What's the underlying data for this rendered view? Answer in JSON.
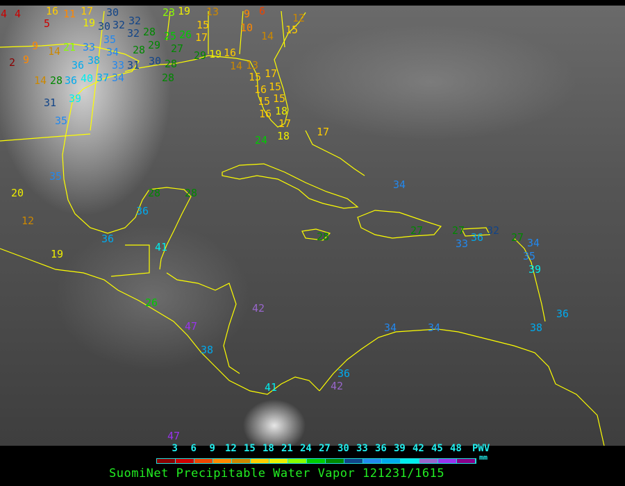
{
  "map": {
    "coastline_color": "#ffff00",
    "stations": [
      {
        "v": "4"
      },
      {
        "v": "4"
      },
      {
        "v": "5"
      },
      {
        "v": "16"
      },
      {
        "v": "11"
      },
      {
        "v": "17"
      },
      {
        "v": "30"
      },
      {
        "v": "19"
      },
      {
        "v": "30"
      },
      {
        "v": "32"
      },
      {
        "v": "32"
      },
      {
        "v": "35"
      },
      {
        "v": "32"
      },
      {
        "v": "28"
      },
      {
        "v": "29"
      },
      {
        "v": "23"
      },
      {
        "v": "19"
      },
      {
        "v": "15"
      },
      {
        "v": "13"
      },
      {
        "v": "9"
      },
      {
        "v": "10"
      },
      {
        "v": "6"
      },
      {
        "v": "12"
      },
      {
        "v": "15"
      },
      {
        "v": "14"
      },
      {
        "v": "9"
      },
      {
        "v": "2"
      },
      {
        "v": "9"
      },
      {
        "v": "14"
      },
      {
        "v": "21"
      },
      {
        "v": "33"
      },
      {
        "v": "34"
      },
      {
        "v": "25"
      },
      {
        "v": "26"
      },
      {
        "v": "17"
      },
      {
        "v": "27"
      },
      {
        "v": "28"
      },
      {
        "v": "36"
      },
      {
        "v": "38"
      },
      {
        "v": "33"
      },
      {
        "v": "31"
      },
      {
        "v": "30"
      },
      {
        "v": "28"
      },
      {
        "v": "29"
      },
      {
        "v": "19"
      },
      {
        "v": "16"
      },
      {
        "v": "14"
      },
      {
        "v": "13"
      },
      {
        "v": "17"
      },
      {
        "v": "15"
      },
      {
        "v": "16"
      },
      {
        "v": "14"
      },
      {
        "v": "28"
      },
      {
        "v": "36"
      },
      {
        "v": "40"
      },
      {
        "v": "37"
      },
      {
        "v": "34"
      },
      {
        "v": "28"
      },
      {
        "v": "15"
      },
      {
        "v": "15"
      },
      {
        "v": "31"
      },
      {
        "v": "39"
      },
      {
        "v": "35"
      },
      {
        "v": "15"
      },
      {
        "v": "18"
      },
      {
        "v": "16"
      },
      {
        "v": "24"
      },
      {
        "v": "17"
      },
      {
        "v": "17"
      },
      {
        "v": "18"
      },
      {
        "v": "20"
      },
      {
        "v": "35"
      },
      {
        "v": "12"
      },
      {
        "v": "28"
      },
      {
        "v": "28"
      },
      {
        "v": "36"
      },
      {
        "v": "36"
      },
      {
        "v": "41"
      },
      {
        "v": "19"
      },
      {
        "v": "34"
      },
      {
        "v": "32"
      },
      {
        "v": "27"
      },
      {
        "v": "27"
      },
      {
        "v": "28"
      },
      {
        "v": "33"
      },
      {
        "v": "36"
      },
      {
        "v": "27"
      },
      {
        "v": "34"
      },
      {
        "v": "35"
      },
      {
        "v": "39"
      },
      {
        "v": "26"
      },
      {
        "v": "42"
      },
      {
        "v": "47"
      },
      {
        "v": "38"
      },
      {
        "v": "34"
      },
      {
        "v": "34"
      },
      {
        "v": "38"
      },
      {
        "v": "36"
      },
      {
        "v": "36"
      },
      {
        "v": "42"
      },
      {
        "v": "41"
      },
      {
        "v": "47"
      }
    ]
  },
  "legend": {
    "ticks": [
      "3",
      "6",
      "9",
      "12",
      "15",
      "18",
      "21",
      "24",
      "27",
      "30",
      "33",
      "36",
      "39",
      "42",
      "45",
      "48"
    ],
    "colors": [
      "#8b0000",
      "#cc0000",
      "#ee4400",
      "#ff8800",
      "#cc8800",
      "#ffcc00",
      "#eeee00",
      "#88ff00",
      "#00cc00",
      "#008800",
      "#114488",
      "#2288ee",
      "#00aaee",
      "#00eeee",
      "#9966cc",
      "#9933ee",
      "#880088"
    ],
    "unit_label": "PWV",
    "unit": "mm"
  },
  "title": "SuomiNet Precipitable Water Vapor 121231/1615"
}
